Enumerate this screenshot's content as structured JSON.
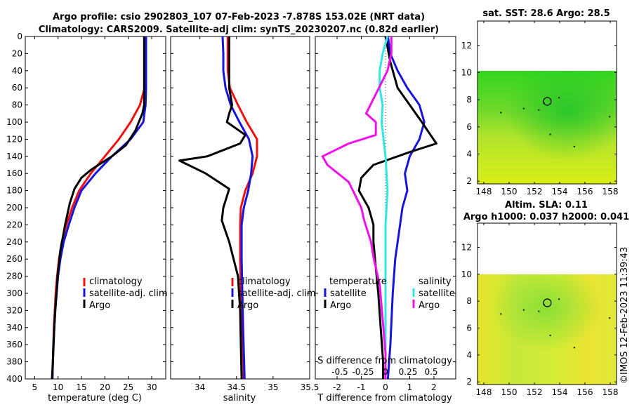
{
  "title": {
    "line1": "Argo profile: csio 2902803_107 07-Feb-2023 -7.878S 153.02E (NRT data)",
    "line2": "Climatology: CARS2009. Satellite-adj clim: synTS_20230207.nc (0.82d earlier)"
  },
  "colors": {
    "climatology": "#ee1111",
    "satellite": "#1515dd",
    "argo": "#000000",
    "satellite_s": "#33e6e6",
    "argo_s": "#ee11ee"
  },
  "depth_axis": {
    "ylim": [
      0,
      400
    ],
    "ticks": [
      0,
      20,
      40,
      60,
      80,
      100,
      120,
      140,
      160,
      180,
      200,
      220,
      240,
      260,
      280,
      300,
      320,
      340,
      360,
      380,
      400
    ]
  },
  "chart_data": [
    {
      "type": "line",
      "name": "temperature",
      "xlabel": "temperature (deg C)",
      "xlim": [
        3,
        33
      ],
      "xticks": [
        5,
        10,
        15,
        20,
        25,
        30
      ],
      "series": [
        {
          "name": "climatology",
          "color": "#ee1111",
          "points": [
            [
              28.7,
              0
            ],
            [
              28.7,
              20
            ],
            [
              28.6,
              40
            ],
            [
              28.5,
              60
            ],
            [
              27.5,
              80
            ],
            [
              25.5,
              100
            ],
            [
              23,
              120
            ],
            [
              20,
              140
            ],
            [
              17,
              160
            ],
            [
              14.5,
              180
            ],
            [
              13,
              200
            ],
            [
              11.8,
              220
            ],
            [
              10.8,
              240
            ],
            [
              10.2,
              260
            ],
            [
              9.8,
              280
            ],
            [
              9.5,
              300
            ],
            [
              9.3,
              320
            ],
            [
              9.1,
              340
            ],
            [
              9,
              360
            ],
            [
              8.9,
              380
            ],
            [
              8.8,
              400
            ]
          ]
        },
        {
          "name": "satellite-adj. clim",
          "color": "#1515dd",
          "points": [
            [
              28.8,
              0
            ],
            [
              28.8,
              20
            ],
            [
              28.8,
              40
            ],
            [
              28.8,
              60
            ],
            [
              28.7,
              80
            ],
            [
              28.2,
              100
            ],
            [
              25.5,
              120
            ],
            [
              21.5,
              140
            ],
            [
              18,
              160
            ],
            [
              15,
              180
            ],
            [
              13.5,
              200
            ],
            [
              12.3,
              220
            ],
            [
              11.2,
              240
            ],
            [
              10.5,
              260
            ],
            [
              10,
              280
            ],
            [
              9.7,
              300
            ],
            [
              9.4,
              320
            ],
            [
              9.2,
              340
            ],
            [
              9,
              360
            ],
            [
              8.9,
              380
            ],
            [
              8.8,
              400
            ]
          ]
        },
        {
          "name": "Argo",
          "color": "#000000",
          "points": [
            [
              28.4,
              0
            ],
            [
              28.4,
              20
            ],
            [
              28.4,
              40
            ],
            [
              28.4,
              60
            ],
            [
              28.4,
              80
            ],
            [
              28,
              90
            ],
            [
              26.5,
              110
            ],
            [
              24.5,
              127
            ],
            [
              21.5,
              140
            ],
            [
              17.2,
              155
            ],
            [
              15,
              165
            ],
            [
              13.5,
              178
            ],
            [
              12.5,
              195
            ],
            [
              11.5,
              220
            ],
            [
              10.5,
              250
            ],
            [
              9.9,
              280
            ],
            [
              9.4,
              320
            ],
            [
              9.2,
              340
            ],
            [
              8.9,
              380
            ],
            [
              8.7,
              400
            ]
          ]
        }
      ],
      "legend": [
        "climatology",
        "satellite-adj. clim",
        "Argo"
      ]
    },
    {
      "type": "line",
      "name": "salinity",
      "xlabel": "salinity",
      "xlim": [
        33.6,
        35.5
      ],
      "xticks": [
        "34",
        "34.5",
        "35",
        "35.5"
      ],
      "series": [
        {
          "name": "climatology",
          "color": "#ee1111",
          "points": [
            [
              34.38,
              0
            ],
            [
              34.38,
              20
            ],
            [
              34.38,
              40
            ],
            [
              34.41,
              60
            ],
            [
              34.52,
              80
            ],
            [
              34.64,
              100
            ],
            [
              34.78,
              120
            ],
            [
              34.78,
              140
            ],
            [
              34.72,
              160
            ],
            [
              34.62,
              180
            ],
            [
              34.56,
              200
            ],
            [
              34.55,
              220
            ],
            [
              34.55,
              260
            ],
            [
              34.56,
              300
            ],
            [
              34.58,
              340
            ],
            [
              34.6,
              400
            ]
          ]
        },
        {
          "name": "satellite-adj. clim",
          "color": "#1515dd",
          "points": [
            [
              34.31,
              0
            ],
            [
              34.32,
              20
            ],
            [
              34.32,
              40
            ],
            [
              34.35,
              60
            ],
            [
              34.42,
              80
            ],
            [
              34.54,
              100
            ],
            [
              34.67,
              120
            ],
            [
              34.72,
              140
            ],
            [
              34.7,
              160
            ],
            [
              34.66,
              180
            ],
            [
              34.6,
              200
            ],
            [
              34.57,
              220
            ],
            [
              34.57,
              260
            ],
            [
              34.58,
              300
            ],
            [
              34.59,
              340
            ],
            [
              34.61,
              400
            ]
          ]
        },
        {
          "name": "Argo",
          "color": "#000000",
          "points": [
            [
              34.4,
              0
            ],
            [
              34.4,
              30
            ],
            [
              34.4,
              60
            ],
            [
              34.44,
              80
            ],
            [
              34.4,
              90
            ],
            [
              34.37,
              100
            ],
            [
              34.62,
              115
            ],
            [
              34.55,
              125
            ],
            [
              34.1,
              140
            ],
            [
              33.72,
              145
            ],
            [
              34.08,
              160
            ],
            [
              34.4,
              178
            ],
            [
              34.32,
              200
            ],
            [
              34.3,
              215
            ],
            [
              34.4,
              240
            ],
            [
              34.52,
              280
            ],
            [
              34.55,
              320
            ],
            [
              34.56,
              360
            ],
            [
              34.57,
              400
            ]
          ]
        }
      ],
      "legend": [
        "climatology",
        "satellite-adj. clim",
        "Argo"
      ]
    },
    {
      "type": "line",
      "name": "difference from climatology",
      "xlabel": "T difference from climatology",
      "xlim": [
        -2.9,
        2.9
      ],
      "xticks": [
        "-2",
        "-1",
        "0",
        "1",
        "2"
      ],
      "top_label": "S difference from climatology",
      "top_ticks": [
        "-0.5",
        "-0.25",
        "0",
        "0.25",
        "0.5"
      ],
      "series": [
        {
          "name": "temperature satellite",
          "color": "#1515dd",
          "points": [
            [
              0.1,
              0
            ],
            [
              0.2,
              20
            ],
            [
              0.5,
              40
            ],
            [
              0.9,
              60
            ],
            [
              1.4,
              80
            ],
            [
              1.6,
              100
            ],
            [
              1.4,
              120
            ],
            [
              1.0,
              140
            ],
            [
              0.8,
              160
            ],
            [
              0.9,
              180
            ],
            [
              0.7,
              200
            ],
            [
              0.6,
              220
            ],
            [
              0.4,
              260
            ],
            [
              0.3,
              300
            ],
            [
              0.2,
              360
            ],
            [
              0.1,
              400
            ]
          ]
        },
        {
          "name": "temperature Argo",
          "color": "#000000",
          "points": [
            [
              0,
              0
            ],
            [
              0.2,
              30
            ],
            [
              0.5,
              60
            ],
            [
              1.0,
              80
            ],
            [
              1.5,
              100
            ],
            [
              2.1,
              125
            ],
            [
              1.0,
              135
            ],
            [
              -0.5,
              150
            ],
            [
              -1.0,
              165
            ],
            [
              -1.1,
              180
            ],
            [
              -0.7,
              200
            ],
            [
              -0.5,
              220
            ],
            [
              -0.5,
              240
            ],
            [
              -0.4,
              270
            ],
            [
              -0.3,
              300
            ],
            [
              -0.2,
              340
            ],
            [
              -0.1,
              380
            ],
            [
              -0.1,
              400
            ]
          ]
        },
        {
          "name": "salinity satellite",
          "color": "#33e6e6",
          "points": [
            [
              0.02,
              0
            ],
            [
              -0.03,
              20
            ],
            [
              -0.06,
              40
            ],
            [
              -0.06,
              60
            ],
            [
              -0.03,
              80
            ],
            [
              -0.04,
              100
            ],
            [
              -0.02,
              120
            ],
            [
              0,
              140
            ],
            [
              0.01,
              160
            ],
            [
              0.02,
              180
            ],
            [
              0.01,
              200
            ],
            [
              0,
              220
            ],
            [
              0,
              260
            ],
            [
              0,
              300
            ],
            [
              0,
              340
            ],
            [
              0,
              400
            ]
          ]
        },
        {
          "name": "salinity Argo",
          "color": "#ee11ee",
          "points": [
            [
              0.06,
              0
            ],
            [
              0.06,
              20
            ],
            [
              0.02,
              40
            ],
            [
              -0.2,
              90
            ],
            [
              -0.1,
              100
            ],
            [
              -0.1,
              115
            ],
            [
              -0.38,
              125
            ],
            [
              -0.65,
              140
            ],
            [
              -0.6,
              150
            ],
            [
              -0.38,
              170
            ],
            [
              -0.25,
              200
            ],
            [
              -0.22,
              215
            ],
            [
              -0.15,
              240
            ],
            [
              -0.12,
              260
            ],
            [
              -0.06,
              290
            ],
            [
              -0.03,
              330
            ],
            [
              0,
              370
            ],
            [
              0,
              400
            ]
          ]
        }
      ],
      "legend": {
        "headers": [
          "temperature",
          "salinity"
        ],
        "items": [
          "satellite",
          "Argo",
          "satellite",
          "Argo"
        ]
      }
    },
    {
      "type": "heatmap",
      "name": "satellite sst map",
      "title": "sat. SST: 28.6 Argo: 28.5",
      "xlim": [
        147.5,
        158.5
      ],
      "ylim": [
        1.8,
        13.8
      ],
      "xticks": [
        "148",
        "150",
        "152",
        "154",
        "156",
        "158"
      ],
      "yticks": [
        "2",
        "4",
        "6",
        "8",
        "10",
        "12"
      ],
      "data_top": 10,
      "argo_position": [
        153.02,
        7.878
      ]
    },
    {
      "type": "heatmap",
      "name": "altimetry sla map",
      "title": "Altim. SLA: 0.11",
      "subtitle": "Argo h1000: 0.037 h2000: 0.041",
      "xlim": [
        147.5,
        158.5
      ],
      "ylim": [
        1.8,
        13.8
      ],
      "xticks": [
        "148",
        "150",
        "152",
        "154",
        "156",
        "158"
      ],
      "yticks": [
        "2",
        "4",
        "6",
        "8",
        "10",
        "12"
      ],
      "data_top": 10,
      "argo_position": [
        153.02,
        7.878
      ]
    }
  ],
  "stamp": "©IMOS 12-Feb-2023 11:39:43"
}
